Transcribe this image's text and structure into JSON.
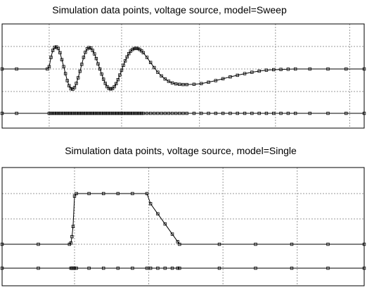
{
  "charts": [
    {
      "title": "Simulation data points, voltage source, model=Sweep",
      "chart_type": "line",
      "grid": true,
      "x_range": [
        0,
        100
      ],
      "x_ticks": [
        13,
        33,
        54.5,
        75.5,
        96
      ],
      "y_ticks": [
        -0.9,
        0,
        0.9
      ],
      "series": [
        {
          "role": "waveform",
          "color": "#000000",
          "points": [
            [
              0,
              0
            ],
            [
              4,
              0
            ],
            [
              12.5,
              0
            ],
            [
              13,
              0.1
            ],
            [
              13.5,
              0.5
            ],
            [
              14,
              0.8
            ],
            [
              14.5,
              0.93
            ],
            [
              15,
              0.95
            ],
            [
              15.5,
              0.88
            ],
            [
              16,
              0.7
            ],
            [
              16.5,
              0.4
            ],
            [
              17,
              0.1
            ],
            [
              17.5,
              -0.2
            ],
            [
              18,
              -0.5
            ],
            [
              18.5,
              -0.72
            ],
            [
              19,
              -0.85
            ],
            [
              19.5,
              -0.87
            ],
            [
              20,
              -0.8
            ],
            [
              20.5,
              -0.62
            ],
            [
              21,
              -0.38
            ],
            [
              21.5,
              -0.1
            ],
            [
              22,
              0.2
            ],
            [
              22.5,
              0.5
            ],
            [
              23,
              0.72
            ],
            [
              23.5,
              0.87
            ],
            [
              24,
              0.92
            ],
            [
              24.5,
              0.9
            ],
            [
              25,
              0.8
            ],
            [
              25.5,
              0.65
            ],
            [
              26,
              0.45
            ],
            [
              26.5,
              0.22
            ],
            [
              27,
              0
            ],
            [
              27.5,
              -0.22
            ],
            [
              28,
              -0.44
            ],
            [
              28.5,
              -0.62
            ],
            [
              29,
              -0.76
            ],
            [
              29.5,
              -0.84
            ],
            [
              30,
              -0.86
            ],
            [
              30.5,
              -0.84
            ],
            [
              31,
              -0.76
            ],
            [
              31.5,
              -0.63
            ],
            [
              32,
              -0.46
            ],
            [
              32.5,
              -0.26
            ],
            [
              33,
              -0.05
            ],
            [
              33.5,
              0.16
            ],
            [
              34,
              0.35
            ],
            [
              34.5,
              0.52
            ],
            [
              35,
              0.66
            ],
            [
              35.5,
              0.77
            ],
            [
              36,
              0.84
            ],
            [
              36.5,
              0.88
            ],
            [
              37,
              0.89
            ],
            [
              37.5,
              0.88
            ],
            [
              38,
              0.84
            ],
            [
              38.5,
              0.78
            ],
            [
              39,
              0.7
            ],
            [
              40,
              0.5
            ],
            [
              41,
              0.28
            ],
            [
              42,
              0.06
            ],
            [
              43,
              -0.14
            ],
            [
              44,
              -0.3
            ],
            [
              45,
              -0.43
            ],
            [
              46,
              -0.53
            ],
            [
              47,
              -0.6
            ],
            [
              48,
              -0.64
            ],
            [
              49,
              -0.66
            ],
            [
              50,
              -0.67
            ],
            [
              51,
              -0.67
            ],
            [
              53,
              -0.66
            ],
            [
              55,
              -0.63
            ],
            [
              57,
              -0.57
            ],
            [
              59,
              -0.5
            ],
            [
              61,
              -0.42
            ],
            [
              63,
              -0.34
            ],
            [
              65,
              -0.27
            ],
            [
              67,
              -0.2
            ],
            [
              69,
              -0.14
            ],
            [
              71,
              -0.09
            ],
            [
              73,
              -0.05
            ],
            [
              75,
              -0.03
            ],
            [
              77,
              -0.02
            ],
            [
              79,
              -0.01
            ],
            [
              81,
              0
            ],
            [
              85,
              0
            ],
            [
              90,
              0
            ],
            [
              95,
              0
            ],
            [
              100,
              0
            ]
          ]
        },
        {
          "role": "sample-points",
          "color": "#000000",
          "x": [
            0,
            4,
            13,
            13.5,
            14,
            14.5,
            15,
            15.5,
            16,
            16.5,
            17,
            17.5,
            18,
            18.5,
            19,
            19.5,
            20,
            20.5,
            21,
            21.5,
            22,
            22.5,
            23,
            23.5,
            24,
            24.5,
            25,
            25.5,
            26,
            26.5,
            27,
            27.5,
            28,
            28.5,
            29,
            29.5,
            30,
            30.5,
            31,
            31.5,
            32,
            32.5,
            33,
            33.5,
            34,
            34.5,
            35,
            35.5,
            36,
            36.5,
            37,
            37.5,
            38,
            38.5,
            39,
            40,
            41,
            42,
            43,
            44,
            45,
            46,
            47,
            48,
            49,
            50,
            51,
            53,
            55,
            57,
            59,
            61,
            63,
            65,
            67,
            69,
            71,
            73,
            75,
            77,
            79,
            81,
            85,
            90,
            95,
            100
          ]
        }
      ]
    },
    {
      "title": "Simulation data points, voltage source, model=Single",
      "chart_type": "line",
      "grid": true,
      "x_range": [
        0,
        100
      ],
      "x_ticks": [
        20,
        40.5,
        61,
        81.5
      ],
      "y_ticks": [
        -1,
        0,
        1
      ],
      "series": [
        {
          "role": "waveform",
          "color": "#000000",
          "points": [
            [
              0,
              0
            ],
            [
              10,
              0
            ],
            [
              18.6,
              0
            ],
            [
              19,
              0.05
            ],
            [
              19.3,
              0.3
            ],
            [
              19.6,
              0.7
            ],
            [
              20,
              1.9
            ],
            [
              20.5,
              2
            ],
            [
              24,
              2
            ],
            [
              28,
              2
            ],
            [
              32,
              2
            ],
            [
              36,
              2
            ],
            [
              40,
              2
            ],
            [
              41,
              1.6
            ],
            [
              43,
              1.2
            ],
            [
              45,
              0.8
            ],
            [
              47,
              0.4
            ],
            [
              48.5,
              0.1
            ],
            [
              49,
              0
            ],
            [
              60,
              0
            ],
            [
              70,
              0
            ],
            [
              80,
              0
            ],
            [
              90,
              0
            ],
            [
              100,
              0
            ]
          ]
        },
        {
          "role": "sample-points",
          "color": "#000000",
          "x": [
            0,
            10,
            19,
            19.3,
            19.6,
            20,
            20.5,
            24,
            28,
            32,
            36,
            40,
            41,
            43,
            45,
            47,
            48.5,
            49,
            60,
            70,
            80,
            90,
            100
          ]
        }
      ]
    }
  ]
}
